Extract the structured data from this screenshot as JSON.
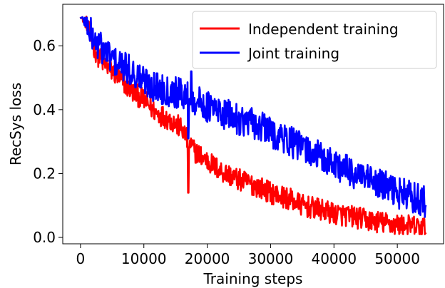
{
  "chart_data": {
    "type": "line",
    "title": "",
    "xlabel": "Training steps",
    "ylabel": "RecSys loss",
    "xlim": [
      -2800,
      57300
    ],
    "ylim": [
      -0.02,
      0.73
    ],
    "xticks": [
      0,
      10000,
      20000,
      30000,
      40000,
      50000
    ],
    "xtick_labels": [
      "0",
      "10000",
      "20000",
      "30000",
      "40000",
      "50000"
    ],
    "yticks": [
      0.0,
      0.2,
      0.4,
      0.6
    ],
    "ytick_labels": [
      "0.0",
      "0.2",
      "0.4",
      "0.6"
    ],
    "grid": false,
    "legend_position": "top-right",
    "series": [
      {
        "name": "Independent training",
        "color": "#ff0000",
        "x": [
          0,
          1000,
          2000,
          3000,
          4000,
          5000,
          6000,
          8000,
          10000,
          12000,
          14000,
          16000,
          17000,
          18000,
          20000,
          22000,
          25000,
          28000,
          30000,
          33000,
          35000,
          38000,
          40000,
          43000,
          45000,
          48000,
          50000,
          52000,
          54500
        ],
        "y": [
          0.69,
          0.67,
          0.6,
          0.56,
          0.54,
          0.52,
          0.5,
          0.46,
          0.43,
          0.39,
          0.37,
          0.34,
          0.3,
          0.27,
          0.24,
          0.21,
          0.18,
          0.16,
          0.14,
          0.12,
          0.1,
          0.085,
          0.075,
          0.065,
          0.055,
          0.045,
          0.04,
          0.035,
          0.03
        ]
      },
      {
        "name": "Joint training",
        "color": "#0000ff",
        "x": [
          0,
          1000,
          2000,
          3000,
          4000,
          5000,
          6000,
          8000,
          10000,
          12000,
          14000,
          16000,
          17000,
          18000,
          20000,
          22000,
          25000,
          28000,
          30000,
          33000,
          35000,
          38000,
          40000,
          43000,
          45000,
          48000,
          50000,
          52000,
          54500
        ],
        "y": [
          0.69,
          0.67,
          0.62,
          0.6,
          0.58,
          0.56,
          0.54,
          0.52,
          0.49,
          0.47,
          0.46,
          0.45,
          0.44,
          0.43,
          0.41,
          0.39,
          0.37,
          0.35,
          0.33,
          0.3,
          0.28,
          0.25,
          0.23,
          0.2,
          0.18,
          0.16,
          0.14,
          0.13,
          0.11
        ]
      }
    ]
  }
}
